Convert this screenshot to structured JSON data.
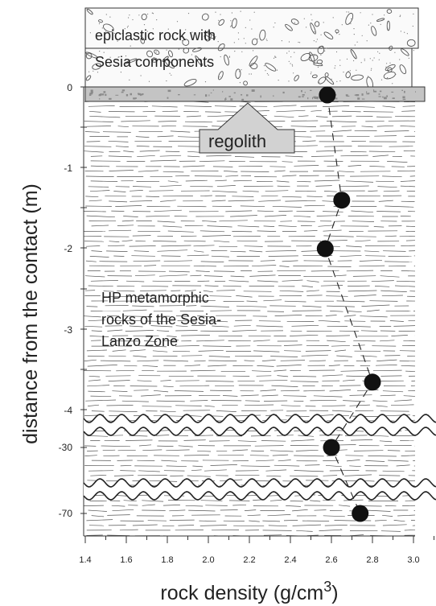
{
  "chart_data": {
    "type": "scatter",
    "title": "",
    "xlabel": "rock density (g/cm",
    "xlabel_superscript": "3",
    "xlabel_close": ")",
    "ylabel": "distance from the contact (m)",
    "x_ticks": [
      "1.4",
      "1.6",
      "1.8",
      "2.0",
      "2.2",
      "2.4",
      "2.6",
      "2.8",
      "3.0"
    ],
    "y_ticks": [
      "0",
      "-1",
      "-2",
      "-3",
      "-4",
      "-30",
      "-70"
    ],
    "xlim": [
      1.4,
      3.1
    ],
    "points": [
      {
        "x": 2.58,
        "y": -0.1
      },
      {
        "x": 2.65,
        "y": -1.4
      },
      {
        "x": 2.57,
        "y": -2.0
      },
      {
        "x": 2.8,
        "y": -3.65
      },
      {
        "x": 2.6,
        "y": -30
      },
      {
        "x": 2.74,
        "y": -70
      }
    ],
    "trend": "dashed",
    "grid": false
  },
  "annotations": {
    "top_unit_line1": "epiclastic rock with",
    "top_unit_line2": "Sesia components",
    "regolith": "regolith",
    "hp_line1": "HP metamorphic",
    "hp_line2": "rocks of the Sesia-",
    "hp_line3": "Lanzo Zone"
  },
  "colors": {
    "marker": "#111111",
    "regolith_fill": "#c4c4c4",
    "callout_fill": "#d2d2d2",
    "hatch": "#444444"
  }
}
